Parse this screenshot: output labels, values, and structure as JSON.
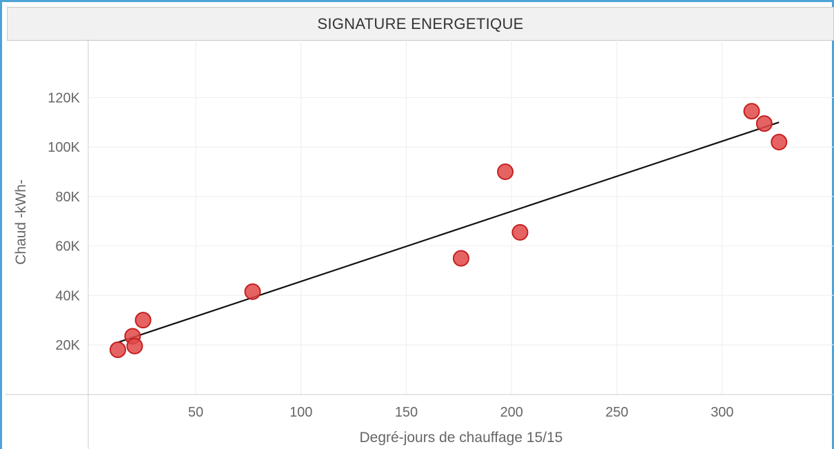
{
  "header": {
    "title": "SIGNATURE ENERGETIQUE"
  },
  "colors": {
    "point_fill": "#e04848",
    "point_stroke": "#c42020",
    "trend_line": "#111111",
    "grid": "#eeeeee",
    "axis": "#cccccc",
    "frame": "#4ca3d6"
  },
  "chart_data": {
    "type": "scatter",
    "title": "SIGNATURE ENERGETIQUE",
    "xlabel": "Degré-jours de chauffage 15/15",
    "ylabel": "Chaud -kWh-",
    "xlim": [
      -10,
      352
    ],
    "ylim": [
      0,
      143000
    ],
    "x_ticks": [
      50,
      100,
      150,
      200,
      250,
      300
    ],
    "x_tick_labels": [
      "50",
      "100",
      "150",
      "200",
      "250",
      "300"
    ],
    "y_ticks": [
      20000,
      40000,
      60000,
      80000,
      100000,
      120000
    ],
    "y_tick_labels": [
      "20K",
      "40K",
      "60K",
      "80K",
      "100K",
      "120K"
    ],
    "grid": true,
    "legend": "none",
    "points": [
      {
        "x": 13,
        "y": 18000
      },
      {
        "x": 20,
        "y": 23500
      },
      {
        "x": 21,
        "y": 19500
      },
      {
        "x": 25,
        "y": 30000
      },
      {
        "x": 77,
        "y": 41500
      },
      {
        "x": 176,
        "y": 55000
      },
      {
        "x": 197,
        "y": 90000
      },
      {
        "x": 204,
        "y": 65500
      },
      {
        "x": 314,
        "y": 114500
      },
      {
        "x": 320,
        "y": 109500
      },
      {
        "x": 327,
        "y": 102000
      }
    ],
    "trend_line": {
      "x": [
        13,
        327
      ],
      "y": [
        21000,
        110000
      ]
    }
  }
}
